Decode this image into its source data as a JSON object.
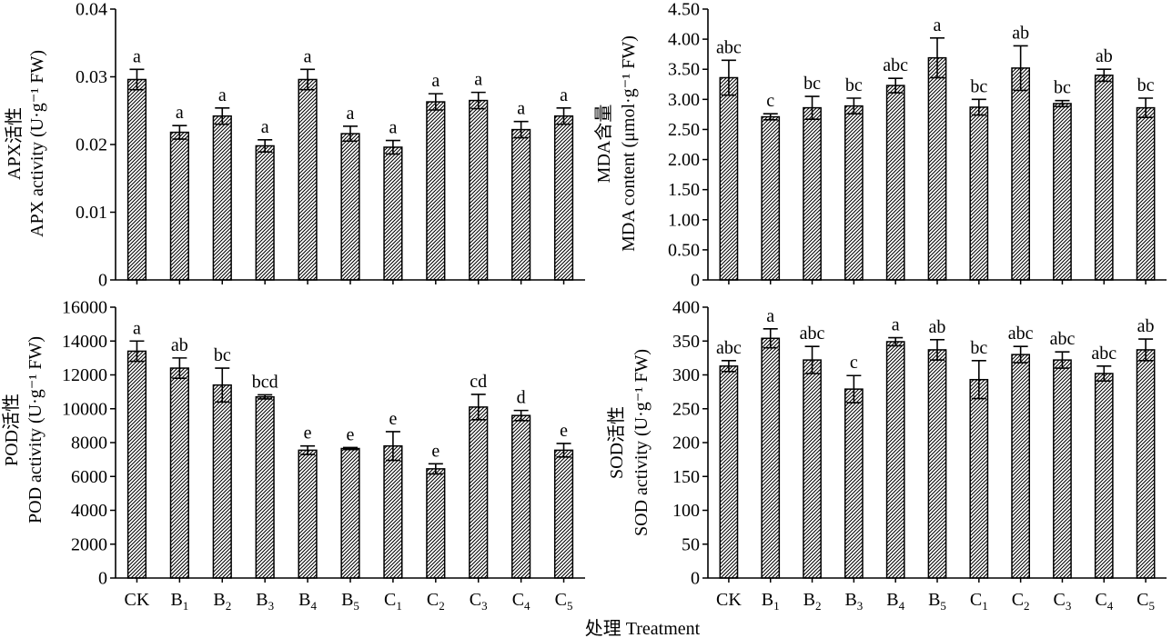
{
  "shared": {
    "categories": [
      "CK",
      "B1",
      "B2",
      "B3",
      "B4",
      "B5",
      "C1",
      "C2",
      "C3",
      "C4",
      "C5"
    ],
    "category_labels": [
      {
        "base": "CK",
        "sub": ""
      },
      {
        "base": "B",
        "sub": "1"
      },
      {
        "base": "B",
        "sub": "2"
      },
      {
        "base": "B",
        "sub": "3"
      },
      {
        "base": "B",
        "sub": "4"
      },
      {
        "base": "B",
        "sub": "5"
      },
      {
        "base": "C",
        "sub": "1"
      },
      {
        "base": "C",
        "sub": "2"
      },
      {
        "base": "C",
        "sub": "3"
      },
      {
        "base": "C",
        "sub": "4"
      },
      {
        "base": "C",
        "sub": "5"
      }
    ],
    "xlabel": "处理 Treatment",
    "bar_fill": "hatched",
    "colors": {
      "ink": "#000000",
      "background": "#ffffff"
    }
  },
  "chart_data": [
    {
      "id": "apx",
      "type": "bar",
      "ylabel_cn": "APX活性",
      "ylabel_en": "APX activity (U·g⁻¹ FW)",
      "ylim": [
        0,
        0.04
      ],
      "yticks": [
        0,
        0.01,
        0.02,
        0.03,
        0.04
      ],
      "yticklabels": [
        "0",
        "0.01",
        "0.02",
        "0.03",
        "0.04"
      ],
      "values": [
        0.0296,
        0.0218,
        0.0242,
        0.0198,
        0.0296,
        0.0216,
        0.0196,
        0.0263,
        0.0265,
        0.0222,
        0.0242
      ],
      "errors": [
        0.0015,
        0.001,
        0.0012,
        0.0009,
        0.0015,
        0.0011,
        0.001,
        0.0012,
        0.0012,
        0.0012,
        0.0012
      ],
      "letters": [
        "a",
        "a",
        "a",
        "a",
        "a",
        "a",
        "a",
        "a",
        "a",
        "a",
        "a"
      ]
    },
    {
      "id": "mda",
      "type": "bar",
      "ylabel_cn": "MDA含量",
      "ylabel_en": "MDA content (μmol·g⁻¹ FW)",
      "ylim": [
        0,
        4.5
      ],
      "yticks": [
        0,
        0.5,
        1,
        1.5,
        2,
        2.5,
        3,
        3.5,
        4,
        4.5
      ],
      "yticklabels": [
        "0",
        "0.50",
        "1.00",
        "1.50",
        "2.00",
        "2.50",
        "3.00",
        "3.50",
        "4.00",
        "4.50"
      ],
      "values": [
        3.36,
        2.71,
        2.86,
        2.89,
        3.23,
        3.69,
        2.87,
        3.52,
        2.93,
        3.4,
        2.86
      ],
      "errors": [
        0.29,
        0.05,
        0.19,
        0.13,
        0.12,
        0.33,
        0.13,
        0.37,
        0.05,
        0.1,
        0.16
      ],
      "letters": [
        "abc",
        "c",
        "bc",
        "bc",
        "abc",
        "a",
        "bc",
        "ab",
        "bc",
        "ab",
        "bc"
      ]
    },
    {
      "id": "pod",
      "type": "bar",
      "ylabel_cn": "POD活性",
      "ylabel_en": "POD activity (U·g⁻¹ FW)",
      "ylim": [
        0,
        16000
      ],
      "yticks": [
        0,
        2000,
        4000,
        6000,
        8000,
        10000,
        12000,
        14000,
        16000
      ],
      "yticklabels": [
        "0",
        "2000",
        "4000",
        "6000",
        "8000",
        "10000",
        "12000",
        "14000",
        "16000"
      ],
      "values": [
        13400,
        12400,
        11400,
        10700,
        7550,
        7650,
        7800,
        6450,
        10100,
        9600,
        7550
      ],
      "errors": [
        600,
        600,
        1000,
        120,
        250,
        60,
        850,
        300,
        750,
        300,
        400
      ],
      "letters": [
        "a",
        "ab",
        "bc",
        "bcd",
        "e",
        "e",
        "e",
        "e",
        "cd",
        "d",
        "e"
      ]
    },
    {
      "id": "sod",
      "type": "bar",
      "ylabel_cn": "SOD活性",
      "ylabel_en": "SOD activity (U·g⁻¹ FW)",
      "ylim": [
        0,
        400
      ],
      "yticks": [
        0,
        50,
        100,
        150,
        200,
        250,
        300,
        350,
        400
      ],
      "yticklabels": [
        "0",
        "50",
        "100",
        "150",
        "200",
        "250",
        "300",
        "350",
        "400"
      ],
      "values": [
        313,
        354,
        322,
        279,
        349,
        337,
        293,
        330,
        322,
        302,
        337
      ],
      "errors": [
        8,
        14,
        20,
        20,
        6,
        15,
        28,
        12,
        12,
        11,
        16
      ],
      "letters": [
        "abc",
        "a",
        "abc",
        "c",
        "a",
        "ab",
        "bc",
        "abc",
        "abc",
        "abc",
        "ab"
      ]
    }
  ]
}
